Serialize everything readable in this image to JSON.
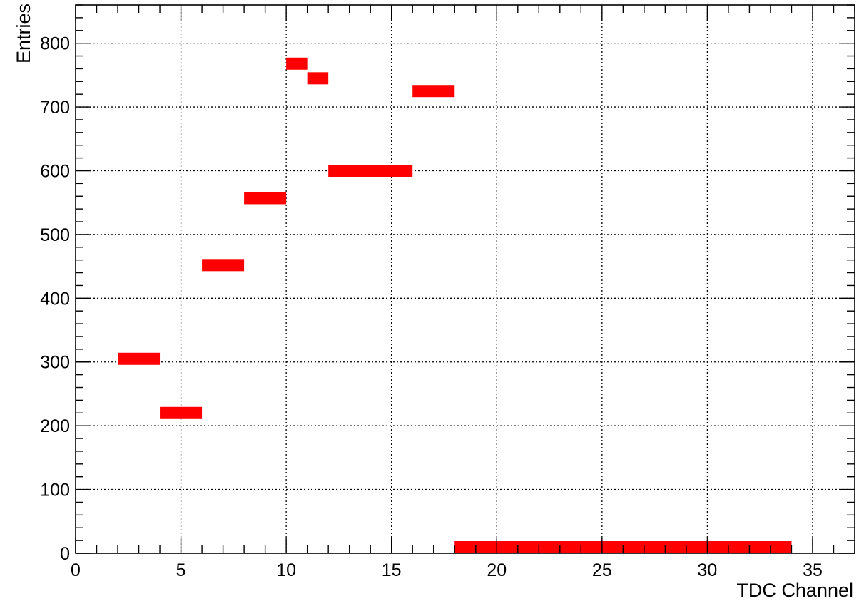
{
  "chart_data": {
    "type": "bar",
    "title": "",
    "xlabel": "TDC Channel",
    "ylabel": "Entries",
    "xlim": [
      0,
      37
    ],
    "ylim": [
      0,
      860
    ],
    "x_ticks": [
      0,
      5,
      10,
      15,
      20,
      25,
      30,
      35
    ],
    "y_ticks": [
      0,
      100,
      200,
      300,
      400,
      500,
      600,
      700,
      800
    ],
    "grid": true,
    "bar_color": "#ff0000",
    "bins": [
      {
        "x_start": 2,
        "x_end": 4,
        "value": 305
      },
      {
        "x_start": 4,
        "x_end": 6,
        "value": 220
      },
      {
        "x_start": 6,
        "x_end": 8,
        "value": 452
      },
      {
        "x_start": 8,
        "x_end": 10,
        "value": 557
      },
      {
        "x_start": 10,
        "x_end": 11,
        "value": 768
      },
      {
        "x_start": 11,
        "x_end": 12,
        "value": 745
      },
      {
        "x_start": 12,
        "x_end": 16,
        "value": 600
      },
      {
        "x_start": 16,
        "x_end": 18,
        "value": 725
      },
      {
        "x_start": 18,
        "x_end": 34,
        "value": 8
      }
    ]
  }
}
